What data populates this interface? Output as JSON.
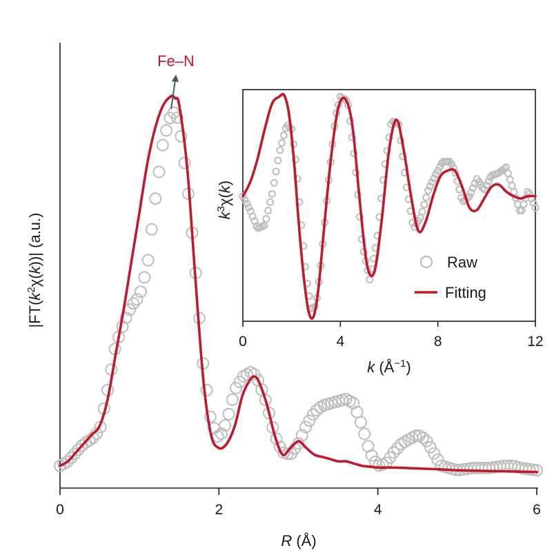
{
  "colors": {
    "fit": "#c0182c",
    "raw": "#bdbdbd",
    "arrow": "#4a5563",
    "axis": "#1a1a1a"
  },
  "chart_data": [
    {
      "type": "line",
      "xlabel_var": "R",
      "xlabel_unit": " (Å)",
      "ylabel": "|FT(k²χ(k))| (a.u.)",
      "ylabel_pre": "|FT(",
      "ylabel_var": "k",
      "ylabel_sup": "2",
      "ylabel_mid": "χ(",
      "ylabel_var2": "k",
      "ylabel_post": "))| (a.u.)",
      "xlim": [
        0,
        6
      ],
      "ylim": [
        0,
        1.0
      ],
      "xticks": [
        0,
        2,
        4,
        6
      ],
      "xtick_labels": [
        "0",
        "2",
        "4",
        "6"
      ],
      "annotation": {
        "text": "Fe–N",
        "x": 1.44,
        "y": 0.93
      },
      "series": [
        {
          "name": "Raw",
          "style": "open-circles",
          "x": [
            0.0,
            0.1,
            0.2,
            0.3,
            0.4,
            0.5,
            0.6,
            0.7,
            0.8,
            0.9,
            1.0,
            1.1,
            1.2,
            1.3,
            1.4,
            1.45,
            1.5,
            1.6,
            1.7,
            1.8,
            1.9,
            2.0,
            2.1,
            2.2,
            2.3,
            2.4,
            2.45,
            2.5,
            2.6,
            2.7,
            2.8,
            2.9,
            3.0,
            3.1,
            3.2,
            3.3,
            3.4,
            3.5,
            3.6,
            3.7,
            3.8,
            3.9,
            4.0,
            4.1,
            4.2,
            4.3,
            4.4,
            4.5,
            4.6,
            4.7,
            4.8,
            4.9,
            5.0,
            5.2,
            5.4,
            5.6,
            5.7,
            5.8,
            6.0
          ],
          "y": [
            0.05,
            0.06,
            0.08,
            0.1,
            0.11,
            0.13,
            0.22,
            0.32,
            0.37,
            0.41,
            0.43,
            0.5,
            0.65,
            0.78,
            0.84,
            0.845,
            0.82,
            0.69,
            0.5,
            0.28,
            0.15,
            0.11,
            0.15,
            0.22,
            0.25,
            0.26,
            0.255,
            0.24,
            0.19,
            0.12,
            0.08,
            0.075,
            0.1,
            0.14,
            0.17,
            0.185,
            0.19,
            0.195,
            0.2,
            0.19,
            0.14,
            0.08,
            0.05,
            0.055,
            0.08,
            0.1,
            0.11,
            0.12,
            0.11,
            0.08,
            0.05,
            0.045,
            0.04,
            0.045,
            0.045,
            0.05,
            0.05,
            0.045,
            0.04
          ]
        },
        {
          "name": "Fitting",
          "style": "line",
          "x": [
            0.0,
            0.1,
            0.2,
            0.3,
            0.4,
            0.5,
            0.6,
            0.7,
            0.8,
            0.9,
            1.0,
            1.1,
            1.2,
            1.3,
            1.4,
            1.45,
            1.5,
            1.6,
            1.7,
            1.8,
            1.9,
            2.0,
            2.1,
            2.2,
            2.3,
            2.4,
            2.45,
            2.5,
            2.6,
            2.7,
            2.8,
            2.9,
            3.0,
            3.1,
            3.2,
            3.3,
            3.4,
            3.5,
            3.6,
            3.7,
            3.8,
            3.9,
            4.0,
            4.2,
            4.5,
            4.8,
            5.0,
            5.5,
            6.0
          ],
          "y": [
            0.05,
            0.06,
            0.08,
            0.1,
            0.12,
            0.14,
            0.2,
            0.3,
            0.4,
            0.51,
            0.62,
            0.73,
            0.81,
            0.86,
            0.88,
            0.875,
            0.86,
            0.72,
            0.48,
            0.25,
            0.12,
            0.09,
            0.1,
            0.14,
            0.21,
            0.245,
            0.25,
            0.24,
            0.19,
            0.12,
            0.075,
            0.09,
            0.105,
            0.09,
            0.075,
            0.07,
            0.065,
            0.06,
            0.06,
            0.055,
            0.05,
            0.048,
            0.046,
            0.046,
            0.044,
            0.042,
            0.04,
            0.038,
            0.036
          ]
        }
      ]
    },
    {
      "type": "line",
      "xlabel_var": "k",
      "xlabel_unit": " (Å",
      "xlabel_sup": "−1",
      "xlabel_close": ")",
      "ylabel_var": "k",
      "ylabel_sup": "3",
      "ylabel_post": "χ(k)",
      "ylabel_pre": "χ(",
      "ylabel_var2": "k",
      "ylabel_close": ")",
      "xlim": [
        0,
        12
      ],
      "ylim": [
        -1.08,
        0.92
      ],
      "xticks": [
        0,
        4,
        8,
        12
      ],
      "xtick_labels": [
        "0",
        "4",
        "8",
        "12"
      ],
      "legend_position": "bottom-right",
      "legend": [
        {
          "label": "Raw",
          "marker": "open-circle"
        },
        {
          "label": "Fitting",
          "marker": "line"
        }
      ],
      "series": [
        {
          "name": "Raw",
          "style": "open-circles",
          "x": [
            0.0,
            0.3,
            0.6,
            0.9,
            1.2,
            1.5,
            1.8,
            2.0,
            2.2,
            2.4,
            2.6,
            2.8,
            3.0,
            3.2,
            3.5,
            3.8,
            4.0,
            4.3,
            4.6,
            4.9,
            5.2,
            5.5,
            5.8,
            6.1,
            6.4,
            6.7,
            7.0,
            7.3,
            7.6,
            7.9,
            8.2,
            8.5,
            8.7,
            9.0,
            9.3,
            9.6,
            9.9,
            10.2,
            10.5,
            10.8,
            11.1,
            11.4,
            11.7,
            12.0
          ],
          "y": [
            0.0,
            -0.12,
            -0.28,
            -0.25,
            0.02,
            0.38,
            0.62,
            0.58,
            0.25,
            -0.25,
            -0.7,
            -0.97,
            -0.95,
            -0.6,
            0.1,
            0.68,
            0.86,
            0.82,
            0.3,
            -0.42,
            -0.72,
            -0.38,
            0.22,
            0.65,
            0.62,
            0.1,
            -0.28,
            -0.18,
            0.05,
            0.18,
            0.3,
            0.3,
            0.22,
            -0.05,
            0.0,
            0.15,
            0.05,
            0.18,
            0.2,
            0.25,
            0.05,
            -0.15,
            0.05,
            -0.1
          ]
        },
        {
          "name": "Fitting",
          "style": "line",
          "x": [
            0.0,
            0.3,
            0.6,
            0.9,
            1.2,
            1.5,
            1.7,
            1.9,
            2.1,
            2.3,
            2.5,
            2.7,
            2.9,
            3.1,
            3.3,
            3.6,
            3.9,
            4.2,
            4.5,
            4.8,
            5.1,
            5.4,
            5.7,
            6.0,
            6.3,
            6.6,
            6.9,
            7.2,
            7.5,
            7.8,
            8.1,
            8.4,
            8.7,
            9.0,
            9.3,
            9.6,
            9.9,
            10.2,
            10.5,
            10.8,
            11.1,
            11.4,
            11.7,
            12.0
          ],
          "y": [
            0.0,
            0.12,
            0.32,
            0.58,
            0.8,
            0.86,
            0.87,
            0.7,
            0.3,
            -0.25,
            -0.7,
            -1.0,
            -1.04,
            -0.8,
            -0.35,
            0.3,
            0.75,
            0.84,
            0.6,
            -0.05,
            -0.6,
            -0.65,
            -0.2,
            0.4,
            0.66,
            0.4,
            0.0,
            -0.3,
            -0.22,
            0.0,
            0.17,
            0.22,
            0.22,
            0.08,
            -0.1,
            -0.12,
            -0.02,
            0.08,
            0.1,
            0.04,
            0.0,
            -0.02,
            0.0,
            0.0
          ]
        }
      ]
    }
  ]
}
